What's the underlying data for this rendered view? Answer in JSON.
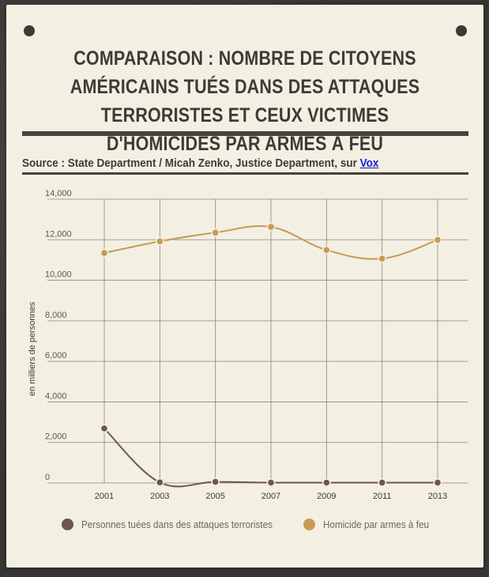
{
  "header": {
    "title": "COMPARAISON : NOMBRE DE CITOYENS AMÉRICAINS TUÉS DANS DES ATTAQUES TERRORISTES ET CEUX VICTIMES D'HOMICIDES PAR ARMES À FEU",
    "source_prefix": "Source :  State Department / Micah Zenko, Justice Department, sur ",
    "source_link": "Vox"
  },
  "colors": {
    "terror": "#6e564b",
    "firearm": "#c89b52",
    "grid": "#8a8780",
    "ink": "#3d3b37"
  },
  "chart_data": {
    "type": "line",
    "title": "",
    "xlabel": "",
    "ylabel": "en milliers de personnes",
    "x": [
      "2001",
      "2003",
      "2005",
      "2007",
      "2009",
      "2011",
      "2013"
    ],
    "ylim": [
      0,
      14000
    ],
    "yticks": [
      "0",
      "2,000",
      "4,000",
      "6,000",
      "8,000",
      "10,000",
      "12,000",
      "14,000"
    ],
    "grid": true,
    "legend_position": "bottom",
    "series": [
      {
        "name": "Personnes tuées dans des attaques terroristes",
        "color": "#6e564b",
        "values": [
          2689,
          25,
          56,
          17,
          15,
          17,
          16
        ]
      },
      {
        "name": "Homicide par armes à feu",
        "color": "#c89b52",
        "values": [
          11348,
          11920,
          12352,
          12632,
          11493,
          11068,
          11990
        ]
      }
    ]
  }
}
